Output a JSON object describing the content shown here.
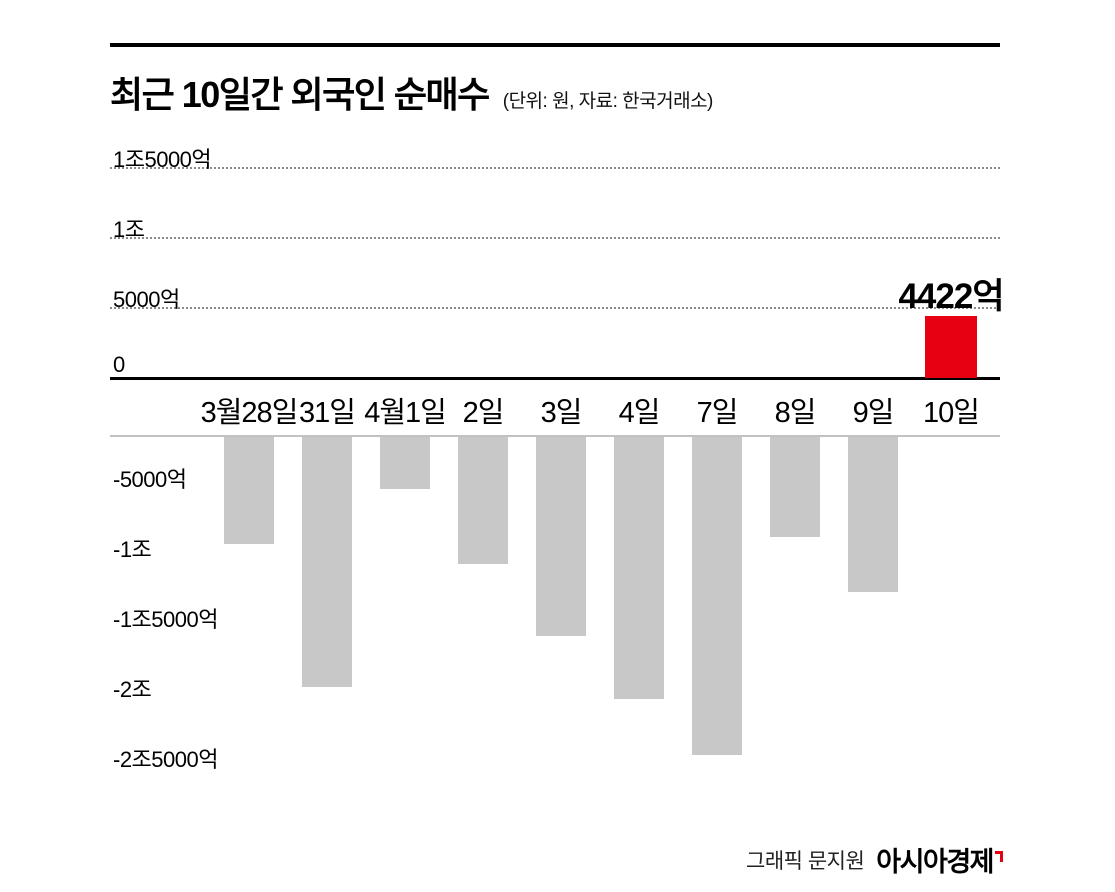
{
  "header": {
    "title": "최근 10일간 외국인 순매수",
    "subtitle": "(단위: 원, 자료: 한국거래소)"
  },
  "chart_data": {
    "type": "bar",
    "title": "최근 10일간 외국인 순매수",
    "unit_note": "단위: 원",
    "source": "자료: 한국거래소",
    "categories": [
      "3월28일",
      "31일",
      "4월1일",
      "2일",
      "3일",
      "4일",
      "7일",
      "8일",
      "9일",
      "10일"
    ],
    "values_in_eok": [
      -9000,
      -19200,
      -5100,
      -10400,
      -15600,
      -20100,
      -24100,
      -8500,
      -12400,
      4422
    ],
    "highlight_index": 9,
    "highlight_label": "4422억",
    "y_axis_labels": [
      "1조5000억",
      "1조",
      "5000억",
      "0",
      "-5000억",
      "-1조",
      "-1조5000억",
      "-2조",
      "-2조5000억"
    ],
    "y_tick_values_eok": [
      15000,
      10000,
      5000,
      0,
      -5000,
      -10000,
      -15000,
      -20000,
      -25000
    ],
    "ylim_eok": [
      -27000,
      17000
    ],
    "bar_color": "#c8c8c8",
    "highlight_color": "#e60012",
    "grid": "dotted horizontal gridlines in positive region, solid black zero axis, light gray line atop negative bar area",
    "legend": "none"
  },
  "footer": {
    "credit": "그래픽 문지원",
    "logo": "아시아경제"
  }
}
